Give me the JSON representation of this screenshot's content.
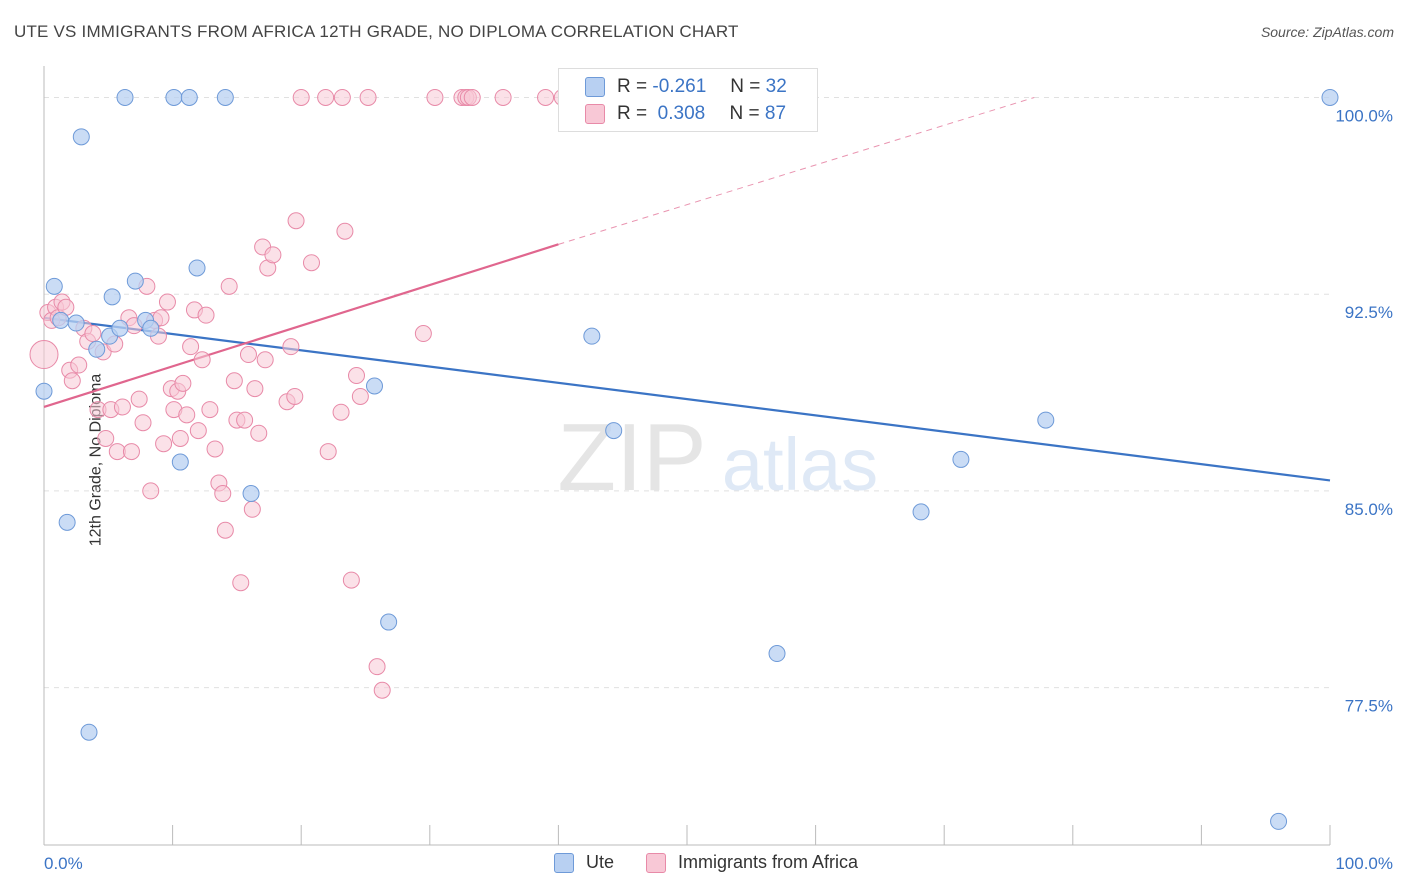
{
  "title": "UTE VS IMMIGRANTS FROM AFRICA 12TH GRADE, NO DIPLOMA CORRELATION CHART",
  "source": "Source: ZipAtlas.com",
  "watermark": {
    "zip": "ZIP",
    "atlas": "atlas"
  },
  "colors": {
    "ute_fill": "#b8d0f2",
    "ute_stroke": "#6e9ad8",
    "ute_line": "#3b74c5",
    "africa_fill": "#f8c8d6",
    "africa_stroke": "#e88aa8",
    "africa_line": "#e0668e",
    "axis_text": "#3b74c5",
    "grid": "#e0e0e0"
  },
  "legend": {
    "ute": {
      "r_label": "R =",
      "r_value": "-0.261",
      "n_label": "N =",
      "n_value": "32"
    },
    "africa": {
      "r_label": "R =",
      "r_value": "0.308",
      "n_label": "N =",
      "n_value": "87"
    }
  },
  "chart_data": {
    "type": "scatter",
    "title": "UTE VS IMMIGRANTS FROM AFRICA 12TH GRADE, NO DIPLOMA CORRELATION CHART",
    "xlabel": "",
    "ylabel": "12th Grade, No Diploma",
    "xlim": [
      0,
      100
    ],
    "ylim": [
      71.5,
      101.2
    ],
    "x_tick_labels": [
      "0.0%",
      "100.0%"
    ],
    "y_ticks": [
      77.5,
      85.0,
      92.5,
      100.0
    ],
    "y_tick_labels": [
      "77.5%",
      "85.0%",
      "92.5%",
      "100.0%"
    ],
    "grid": true,
    "series": [
      {
        "name": "Ute",
        "trend": {
          "x": [
            0,
            100
          ],
          "y": [
            91.6,
            85.4
          ]
        },
        "points": [
          [
            0.0,
            88.8
          ],
          [
            0.8,
            92.8
          ],
          [
            1.3,
            91.5
          ],
          [
            1.8,
            83.8
          ],
          [
            2.5,
            91.4
          ],
          [
            2.9,
            98.5
          ],
          [
            3.5,
            75.8
          ],
          [
            4.1,
            90.4
          ],
          [
            5.1,
            90.9
          ],
          [
            5.3,
            92.4
          ],
          [
            5.9,
            91.2
          ],
          [
            6.3,
            100.0
          ],
          [
            7.1,
            93.0
          ],
          [
            7.9,
            91.5
          ],
          [
            8.3,
            91.2
          ],
          [
            10.1,
            100.0
          ],
          [
            10.6,
            86.1
          ],
          [
            11.3,
            100.0
          ],
          [
            11.9,
            93.5
          ],
          [
            14.1,
            100.0
          ],
          [
            16.1,
            84.9
          ],
          [
            25.7,
            89.0
          ],
          [
            26.8,
            80.0
          ],
          [
            42.6,
            90.9
          ],
          [
            44.3,
            87.3
          ],
          [
            54.2,
            100.0
          ],
          [
            57.0,
            78.8
          ],
          [
            68.2,
            84.2
          ],
          [
            71.3,
            86.2
          ],
          [
            77.9,
            87.7
          ],
          [
            96.0,
            72.4
          ],
          [
            100.0,
            100.0
          ]
        ]
      },
      {
        "name": "Immigrants from Africa",
        "trend": {
          "x": [
            0,
            40
          ],
          "y": [
            88.2,
            94.4
          ]
        },
        "trend_dashed": {
          "x": [
            40,
            77
          ],
          "y": [
            94.4,
            100.0
          ]
        },
        "points": [
          [
            0.0,
            90.2
          ],
          [
            0.3,
            91.8
          ],
          [
            0.6,
            91.5
          ],
          [
            0.9,
            92.0
          ],
          [
            1.1,
            91.6
          ],
          [
            1.4,
            92.2
          ],
          [
            1.7,
            92.0
          ],
          [
            2.0,
            89.6
          ],
          [
            2.2,
            89.2
          ],
          [
            2.7,
            89.8
          ],
          [
            3.1,
            91.2
          ],
          [
            3.4,
            90.7
          ],
          [
            3.8,
            91.0
          ],
          [
            4.2,
            88.1
          ],
          [
            4.6,
            90.3
          ],
          [
            4.8,
            87.0
          ],
          [
            5.2,
            88.1
          ],
          [
            5.5,
            90.6
          ],
          [
            5.7,
            86.5
          ],
          [
            6.1,
            88.2
          ],
          [
            6.6,
            91.6
          ],
          [
            6.8,
            86.5
          ],
          [
            7.0,
            91.3
          ],
          [
            7.4,
            88.5
          ],
          [
            7.7,
            87.6
          ],
          [
            8.0,
            92.8
          ],
          [
            8.3,
            85.0
          ],
          [
            8.6,
            91.5
          ],
          [
            8.9,
            90.9
          ],
          [
            9.1,
            91.6
          ],
          [
            9.3,
            86.8
          ],
          [
            9.6,
            92.2
          ],
          [
            9.9,
            88.9
          ],
          [
            10.1,
            88.1
          ],
          [
            10.4,
            88.8
          ],
          [
            10.6,
            87.0
          ],
          [
            10.8,
            89.1
          ],
          [
            11.1,
            87.9
          ],
          [
            11.4,
            90.5
          ],
          [
            11.7,
            91.9
          ],
          [
            12.0,
            87.3
          ],
          [
            12.3,
            90.0
          ],
          [
            12.6,
            91.7
          ],
          [
            12.9,
            88.1
          ],
          [
            13.3,
            86.6
          ],
          [
            13.6,
            85.3
          ],
          [
            13.9,
            84.9
          ],
          [
            14.1,
            83.5
          ],
          [
            14.4,
            92.8
          ],
          [
            14.8,
            89.2
          ],
          [
            15.0,
            87.7
          ],
          [
            15.3,
            81.5
          ],
          [
            15.6,
            87.7
          ],
          [
            15.9,
            90.2
          ],
          [
            16.2,
            84.3
          ],
          [
            16.4,
            88.9
          ],
          [
            16.7,
            87.2
          ],
          [
            17.0,
            94.3
          ],
          [
            17.2,
            90.0
          ],
          [
            17.4,
            93.5
          ],
          [
            17.8,
            94.0
          ],
          [
            18.9,
            88.4
          ],
          [
            19.2,
            90.5
          ],
          [
            19.5,
            88.6
          ],
          [
            19.6,
            95.3
          ],
          [
            20.0,
            100.0
          ],
          [
            20.8,
            93.7
          ],
          [
            21.9,
            100.0
          ],
          [
            22.1,
            86.5
          ],
          [
            23.2,
            100.0
          ],
          [
            23.1,
            88.0
          ],
          [
            23.4,
            94.9
          ],
          [
            23.9,
            81.6
          ],
          [
            24.3,
            89.4
          ],
          [
            24.6,
            88.6
          ],
          [
            25.2,
            100.0
          ],
          [
            25.9,
            78.3
          ],
          [
            26.3,
            77.4
          ],
          [
            29.5,
            91.0
          ],
          [
            30.4,
            100.0
          ],
          [
            32.5,
            100.0
          ],
          [
            32.8,
            100.0
          ],
          [
            33.0,
            100.0
          ],
          [
            33.3,
            100.0
          ],
          [
            35.7,
            100.0
          ],
          [
            39.0,
            100.0
          ],
          [
            40.3,
            100.0
          ]
        ]
      }
    ]
  },
  "bottom_legend": [
    {
      "label": "Ute"
    },
    {
      "label": "Immigrants from Africa"
    }
  ]
}
